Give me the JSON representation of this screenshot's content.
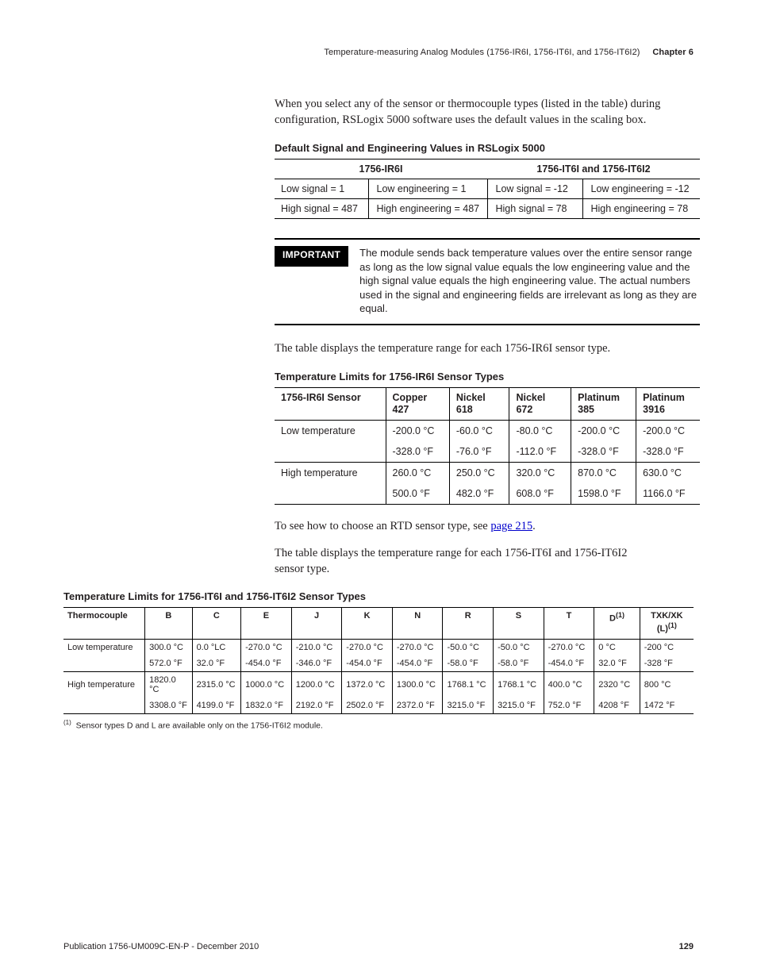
{
  "running_head": {
    "text": "Temperature-measuring Analog Modules (1756-IR6I, 1756-IT6I, and 1756-IT6I2)",
    "chapter": "Chapter 6"
  },
  "intro_paragraph": "When you select any of the sensor or thermocouple types (listed in the table) during configuration, RSLogix 5000 software uses the default values in the scaling box.",
  "table1": {
    "caption": "Default Signal and Engineering Values in RSLogix 5000",
    "head_left": "1756-IR6I",
    "head_right": "1756-IT6I and 1756-IT6I2",
    "row1": {
      "a": "Low signal = 1",
      "b": "Low engineering = 1",
      "c": "Low signal = -12",
      "d": "Low engineering = -12"
    },
    "row2": {
      "a": "High signal = 487",
      "b": "High engineering = 487",
      "c": "High signal = 78",
      "d": "High engineering = 78"
    }
  },
  "important": {
    "label": "IMPORTANT",
    "text": "The module sends back temperature values over the entire sensor range as long as the low signal value equals the low engineering value and the high signal value equals the high engineering value. The actual numbers used in the signal and engineering fields are irrelevant as long as they are equal."
  },
  "after_important_paragraph": "The table displays the temperature range for each 1756-IR6I sensor type.",
  "table2": {
    "caption": "Temperature Limits for 1756-IR6I Sensor Types",
    "headers": [
      "1756-IR6I Sensor",
      "Copper 427",
      "Nickel 618",
      "Nickel 672",
      "Platinum 385",
      "Platinum 3916"
    ],
    "rows": [
      {
        "label": "Low temperature",
        "c": [
          "-200.0 °C",
          "-60.0 °C",
          "-80.0 °C",
          "-200.0 °C",
          "-200.0 °C"
        ],
        "f": [
          "-328.0 °F",
          "-76.0 °F",
          "-112.0 °F",
          "-328.0 °F",
          "-328.0 °F"
        ]
      },
      {
        "label": "High temperature",
        "c": [
          "260.0 °C",
          "250.0 °C",
          "320.0 °C",
          "870.0 °C",
          "630.0 °C"
        ],
        "f": [
          "500.0 °F",
          "482.0 °F",
          "608.0 °F",
          "1598.0 °F",
          "1166.0 °F"
        ]
      }
    ]
  },
  "rtd_sentence_pre": "To see how to choose an RTD sensor type, see ",
  "rtd_link": "page 215",
  "rtd_sentence_post": ".",
  "it6i_paragraph": "The table displays the temperature range for each 1756-IT6I and 1756-IT6I2 sensor type.",
  "table3": {
    "caption": "Temperature Limits for 1756-IT6I and 1756-IT6I2 Sensor Types",
    "headers": [
      "Thermocouple",
      "B",
      "C",
      "E",
      "J",
      "K",
      "N",
      "R",
      "S",
      "T",
      "D",
      "TXK/XK (L)"
    ],
    "header_sup": {
      "10": "(1)",
      "11": "(1)"
    },
    "rows": [
      {
        "label": "Low temperature",
        "c": [
          "300.0 °C",
          "0.0 °LC",
          "-270.0 °C",
          "-210.0 °C",
          "-270.0 °C",
          "-270.0 °C",
          "-50.0 °C",
          "-50.0 °C",
          "-270.0 °C",
          "0 °C",
          "-200 °C"
        ],
        "f": [
          "572.0 °F",
          "32.0 °F",
          "-454.0 °F",
          "-346.0 °F",
          "-454.0 °F",
          "-454.0 °F",
          "-58.0 °F",
          "-58.0 °F",
          "-454.0 °F",
          "32.0 °F",
          "-328 °F"
        ]
      },
      {
        "label": "High temperature",
        "c": [
          "1820.0 °C",
          "2315.0 °C",
          "1000.0 °C",
          "1200.0 °C",
          "1372.0 °C",
          "1300.0 °C",
          "1768.1 °C",
          "1768.1 °C",
          "400.0 °C",
          "2320 °C",
          "800 °C"
        ],
        "f": [
          "3308.0 °F",
          "4199.0 °F",
          "1832.0 °F",
          "2192.0 °F",
          "2502.0 °F",
          "2372.0 °F",
          "3215.0 °F",
          "3215.0 °F",
          "752.0 °F",
          "4208 °F",
          "1472 °F"
        ]
      }
    ],
    "footnote_marker": "(1)",
    "footnote_text": "Sensor types D and L are available only on the 1756-IT6I2 module."
  },
  "footer": {
    "pub": "Publication 1756-UM009C-EN-P - December 2010",
    "page": "129"
  },
  "colors": {
    "text": "#231f20",
    "link": "#0000cc",
    "rule": "#000000",
    "background": "#ffffff"
  }
}
